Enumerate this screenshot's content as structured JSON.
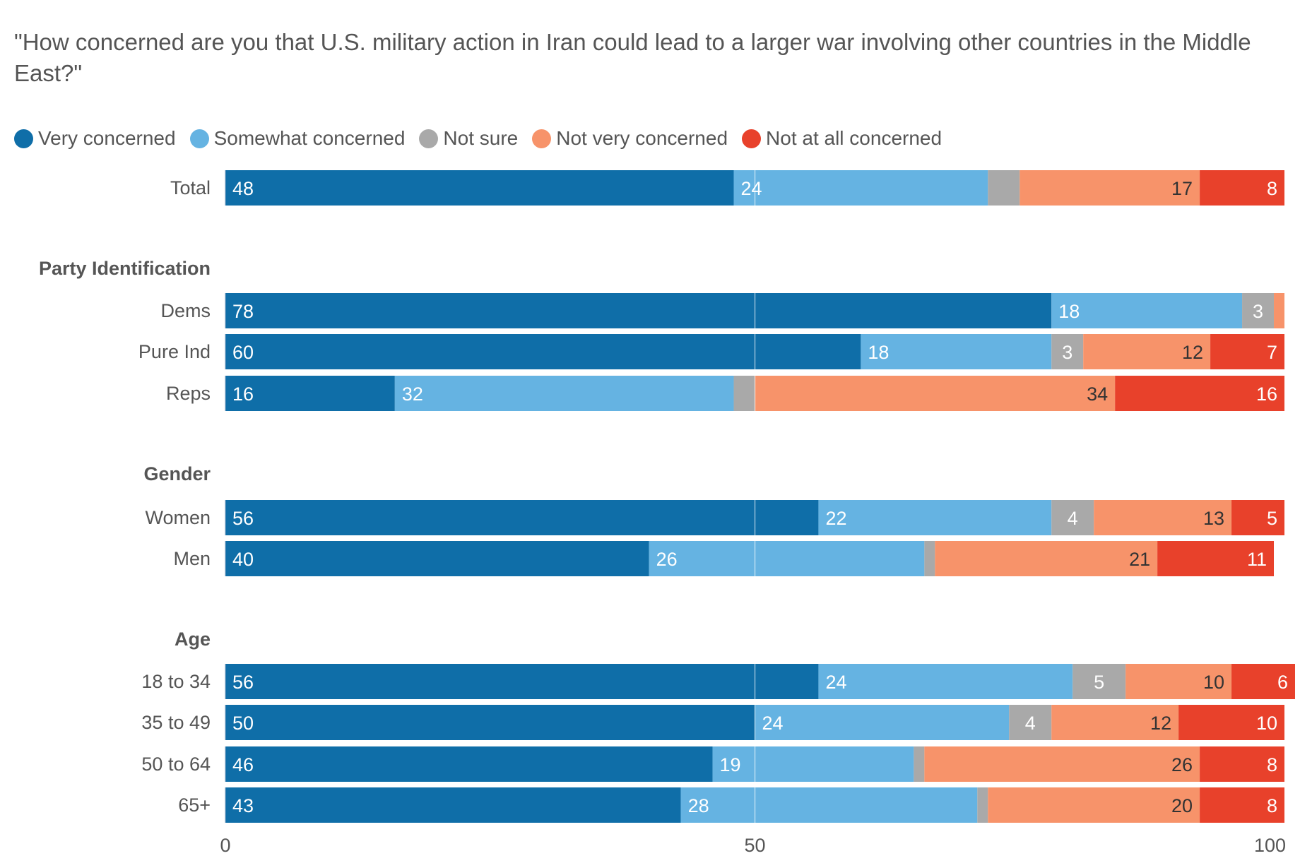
{
  "title": "\"How concerned are you that U.S. military action in Iran could lead to a larger war involving other countries in the Middle East?\"",
  "legend": [
    {
      "label": "Very concerned",
      "color": "#0f6ea8"
    },
    {
      "label": "Somewhat concerned",
      "color": "#65b3e2"
    },
    {
      "label": "Not sure",
      "color": "#a9a9a9"
    },
    {
      "label": "Not very concerned",
      "color": "#f7936a"
    },
    {
      "label": "Not at all concerned",
      "color": "#e8412b"
    }
  ],
  "chart_data": {
    "type": "bar",
    "orientation": "horizontal",
    "stacked": true,
    "title": "\"How concerned are you that U.S. military action in Iran could lead to a larger war involving other countries in the Middle East?\"",
    "xlabel": "",
    "ylabel": "",
    "xlim": [
      0,
      100
    ],
    "xticks": [
      0,
      50,
      100
    ],
    "gridlines": [
      50
    ],
    "legend_position": "top-left",
    "series_names": [
      "Very concerned",
      "Somewhat concerned",
      "Not sure",
      "Not very concerned",
      "Not at all concerned"
    ],
    "series_colors": [
      "#0f6ea8",
      "#65b3e2",
      "#a9a9a9",
      "#f7936a",
      "#e8412b"
    ],
    "label_colors": [
      "#ffffff",
      "#ffffff",
      "#ffffff",
      "#333333",
      "#ffffff"
    ],
    "groups": [
      {
        "heading": "",
        "rows": [
          {
            "label": "Total",
            "values": [
              48,
              24,
              3,
              17,
              8
            ],
            "shown": [
              true,
              true,
              false,
              true,
              true
            ]
          }
        ]
      },
      {
        "heading": "Party Identification",
        "rows": [
          {
            "label": "Dems",
            "values": [
              78,
              18,
              3,
              1,
              0
            ],
            "shown": [
              true,
              true,
              true,
              false,
              false
            ]
          },
          {
            "label": "Pure Ind",
            "values": [
              60,
              18,
              3,
              12,
              7
            ],
            "shown": [
              true,
              true,
              true,
              true,
              true
            ]
          },
          {
            "label": "Reps",
            "values": [
              16,
              32,
              2,
              34,
              16
            ],
            "shown": [
              true,
              true,
              false,
              true,
              true
            ]
          }
        ]
      },
      {
        "heading": "Gender",
        "rows": [
          {
            "label": "Women",
            "values": [
              56,
              22,
              4,
              13,
              5
            ],
            "shown": [
              true,
              true,
              true,
              true,
              true
            ]
          },
          {
            "label": "Men",
            "values": [
              40,
              26,
              1,
              21,
              11
            ],
            "shown": [
              true,
              true,
              false,
              true,
              true
            ]
          }
        ]
      },
      {
        "heading": "Age",
        "rows": [
          {
            "label": "18 to 34",
            "values": [
              56,
              24,
              5,
              10,
              6
            ],
            "shown": [
              true,
              true,
              true,
              true,
              true
            ]
          },
          {
            "label": "35 to 49",
            "values": [
              50,
              24,
              4,
              12,
              10
            ],
            "shown": [
              true,
              true,
              true,
              true,
              true
            ]
          },
          {
            "label": "50 to 64",
            "values": [
              46,
              19,
              1,
              26,
              8
            ],
            "shown": [
              true,
              true,
              false,
              true,
              true
            ]
          },
          {
            "label": "65+",
            "values": [
              43,
              28,
              1,
              20,
              8
            ],
            "shown": [
              true,
              true,
              false,
              true,
              true
            ]
          }
        ]
      }
    ]
  }
}
